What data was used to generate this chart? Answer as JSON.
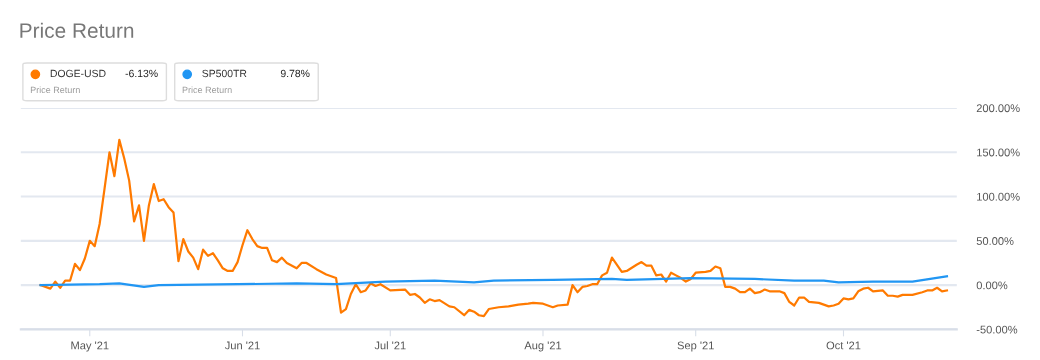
{
  "chart_data": {
    "type": "line",
    "title": "Price Return",
    "xlim": [
      "2021-04-17",
      "2021-10-24"
    ],
    "xticks": [
      {
        "value": "2021-05-01",
        "label": "May '21"
      },
      {
        "value": "2021-06-01",
        "label": "Jun '21"
      },
      {
        "value": "2021-07-01",
        "label": "Jul '21"
      },
      {
        "value": "2021-08-01",
        "label": "Aug '21"
      },
      {
        "value": "2021-09-01",
        "label": "Sep '21"
      },
      {
        "value": "2021-10-01",
        "label": "Oct '21"
      }
    ],
    "ylim": [
      -50,
      200
    ],
    "yticks": [
      {
        "value": -50,
        "label": "-50.00%"
      },
      {
        "value": 0,
        "label": "0.00%"
      },
      {
        "value": 50,
        "label": "50.00%"
      },
      {
        "value": 100,
        "label": "100.00%"
      },
      {
        "value": 150,
        "label": "150.00%"
      },
      {
        "value": 200,
        "label": "200.00%"
      }
    ],
    "grid": "y",
    "legend": "top left",
    "marker": "none",
    "line_style": "solid",
    "annotations": [
      "-6.13%",
      "Price Return",
      "9.78%",
      "Price Return"
    ],
    "series": [
      {
        "name": "DOGE-USD",
        "color": "#ff7a00",
        "x": [
          "2021-04-21",
          "2021-04-23",
          "2021-04-24",
          "2021-04-25",
          "2021-04-26",
          "2021-04-27",
          "2021-04-28",
          "2021-04-29",
          "2021-04-30",
          "2021-05-01",
          "2021-05-02",
          "2021-05-03",
          "2021-05-04",
          "2021-05-05",
          "2021-05-06",
          "2021-05-07",
          "2021-05-08",
          "2021-05-09",
          "2021-05-10",
          "2021-05-11",
          "2021-05-12",
          "2021-05-13",
          "2021-05-14",
          "2021-05-15",
          "2021-05-16",
          "2021-05-17",
          "2021-05-18",
          "2021-05-19",
          "2021-05-20",
          "2021-05-21",
          "2021-05-22",
          "2021-05-23",
          "2021-05-24",
          "2021-05-25",
          "2021-05-26",
          "2021-05-27",
          "2021-05-28",
          "2021-05-29",
          "2021-05-30",
          "2021-05-31",
          "2021-06-01",
          "2021-06-02",
          "2021-06-03",
          "2021-06-04",
          "2021-06-05",
          "2021-06-06",
          "2021-06-07",
          "2021-06-08",
          "2021-06-09",
          "2021-06-10",
          "2021-06-12",
          "2021-06-13",
          "2021-06-14",
          "2021-06-16",
          "2021-06-18",
          "2021-06-20",
          "2021-06-21",
          "2021-06-22",
          "2021-06-23",
          "2021-06-24",
          "2021-06-25",
          "2021-06-26",
          "2021-06-27",
          "2021-06-28",
          "2021-06-29",
          "2021-07-01",
          "2021-07-04",
          "2021-07-05",
          "2021-07-06",
          "2021-07-07",
          "2021-07-08",
          "2021-07-09",
          "2021-07-10",
          "2021-07-11",
          "2021-07-13",
          "2021-07-14",
          "2021-07-16",
          "2021-07-17",
          "2021-07-18",
          "2021-07-19",
          "2021-07-20",
          "2021-07-21",
          "2021-07-23",
          "2021-07-25",
          "2021-07-27",
          "2021-07-29",
          "2021-07-30",
          "2021-08-01",
          "2021-08-03",
          "2021-08-04",
          "2021-08-06",
          "2021-08-07",
          "2021-08-08",
          "2021-08-09",
          "2021-08-10",
          "2021-08-11",
          "2021-08-12",
          "2021-08-13",
          "2021-08-14",
          "2021-08-15",
          "2021-08-17",
          "2021-08-18",
          "2021-08-20",
          "2021-08-21",
          "2021-08-22",
          "2021-08-23",
          "2021-08-24",
          "2021-08-25",
          "2021-08-26",
          "2021-08-27",
          "2021-08-28",
          "2021-08-29",
          "2021-08-30",
          "2021-08-31",
          "2021-09-01",
          "2021-09-03",
          "2021-09-04",
          "2021-09-05",
          "2021-09-06",
          "2021-09-07",
          "2021-09-08",
          "2021-09-09",
          "2021-09-10",
          "2021-09-11",
          "2021-09-12",
          "2021-09-13",
          "2021-09-14",
          "2021-09-15",
          "2021-09-16",
          "2021-09-18",
          "2021-09-19",
          "2021-09-20",
          "2021-09-21",
          "2021-09-22",
          "2021-09-23",
          "2021-09-24",
          "2021-09-26",
          "2021-09-28",
          "2021-09-29",
          "2021-09-30",
          "2021-10-01",
          "2021-10-02",
          "2021-10-03",
          "2021-10-04",
          "2021-10-05",
          "2021-10-06",
          "2021-10-07",
          "2021-10-09",
          "2021-10-10",
          "2021-10-11",
          "2021-10-12",
          "2021-10-13",
          "2021-10-15",
          "2021-10-17",
          "2021-10-18",
          "2021-10-19",
          "2021-10-20",
          "2021-10-21",
          "2021-10-22"
        ],
        "values": [
          0,
          -4,
          4,
          -3,
          5,
          5,
          24,
          17,
          30,
          50,
          44,
          69,
          109,
          150,
          123,
          164,
          143,
          118,
          72,
          90,
          50,
          90,
          114,
          95,
          97,
          88,
          82,
          27,
          52,
          38,
          31,
          18,
          40,
          33,
          36,
          28,
          19,
          16,
          16,
          26,
          45,
          62,
          52,
          44,
          42,
          42,
          28,
          26,
          31,
          25,
          19,
          25,
          25,
          18,
          12,
          8,
          -31,
          -27,
          -10,
          1,
          -8,
          -6,
          2,
          -1,
          1,
          -6,
          -5,
          -11,
          -10,
          -14,
          -20,
          -16,
          -18,
          -17,
          -24,
          -25,
          -34,
          -28,
          -30,
          -34,
          -35,
          -27,
          -25,
          -24,
          -22,
          -21,
          -20,
          -21,
          -25,
          -23,
          -22,
          0,
          -8,
          -2,
          -1,
          1,
          1,
          11,
          14,
          31,
          15,
          16,
          23,
          26,
          22,
          22,
          11,
          12,
          4,
          14,
          11,
          8,
          4,
          7,
          14,
          15,
          16,
          21,
          19,
          -2,
          -2,
          -4,
          -8,
          -8,
          -4,
          -9,
          -8,
          -5,
          -7,
          -7,
          -9,
          -19,
          -23,
          -14,
          -14,
          -19,
          -20,
          -24,
          -23,
          -21,
          -15,
          -16,
          -15,
          -7,
          -4,
          -3,
          -7,
          -6,
          -12,
          -12,
          -13,
          -11,
          -11,
          -8,
          -6,
          -6,
          -3,
          -7,
          -6
        ]
      },
      {
        "name": "SP500TR",
        "color": "#2196f3",
        "x": [
          "2021-04-21",
          "2021-05-03",
          "2021-05-07",
          "2021-05-12",
          "2021-05-15",
          "2021-05-31",
          "2021-06-12",
          "2021-06-20",
          "2021-06-30",
          "2021-07-10",
          "2021-07-18",
          "2021-07-22",
          "2021-08-03",
          "2021-08-15",
          "2021-08-18",
          "2021-08-31",
          "2021-09-13",
          "2021-09-21",
          "2021-09-27",
          "2021-09-30",
          "2021-10-07",
          "2021-10-15",
          "2021-10-22"
        ],
        "values": [
          0,
          1,
          2,
          -2,
          0,
          1,
          2,
          1,
          4,
          5,
          3,
          5,
          6,
          7,
          6,
          8,
          7,
          5,
          5,
          3,
          4,
          4,
          10
        ]
      }
    ]
  }
}
